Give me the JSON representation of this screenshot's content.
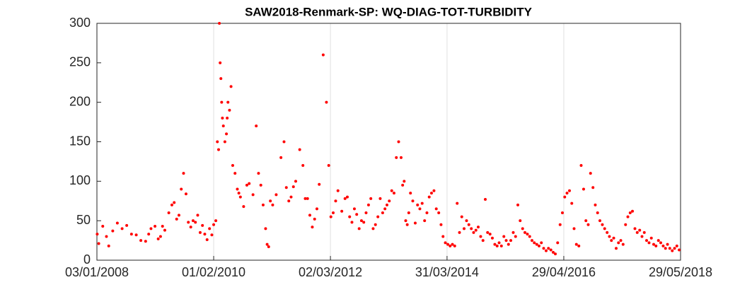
{
  "chart_data": {
    "type": "scatter",
    "title": "SAW2018-Renmark-SP: WQ-DIAG-TOT-TURBIDITY",
    "color": "#ff0000",
    "grid": "x",
    "xlim": [
      "03/01/2008",
      "29/05/2018"
    ],
    "xticks": [
      "03/01/2008",
      "01/02/2010",
      "02/03/2012",
      "31/03/2014",
      "29/04/2016",
      "29/05/2018"
    ],
    "ylim": [
      0,
      300
    ],
    "yticks": [
      0,
      50,
      100,
      150,
      200,
      250,
      300
    ],
    "x": [
      "05/01/2008",
      "15/01/2008",
      "10/02/2008",
      "05/03/2008",
      "20/03/2008",
      "15/04/2008",
      "15/05/2008",
      "15/06/2008",
      "15/07/2008",
      "15/08/2008",
      "15/09/2008",
      "15/10/2008",
      "15/11/2008",
      "05/12/2008",
      "20/12/2008",
      "15/01/2009",
      "05/02/2009",
      "20/02/2009",
      "05/03/2009",
      "20/03/2009",
      "15/04/2009",
      "05/05/2009",
      "20/05/2009",
      "05/06/2009",
      "20/06/2009",
      "05/07/2009",
      "20/07/2009",
      "05/08/2009",
      "20/08/2009",
      "05/09/2009",
      "20/09/2009",
      "05/10/2009",
      "20/10/2009",
      "05/11/2009",
      "20/11/2009",
      "05/12/2009",
      "20/12/2009",
      "05/01/2010",
      "20/01/2010",
      "01/02/2010",
      "15/02/2010",
      "25/02/2010",
      "05/03/2010",
      "10/03/2010",
      "15/03/2010",
      "20/03/2010",
      "25/03/2010",
      "30/03/2010",
      "05/04/2010",
      "15/04/2010",
      "25/04/2010",
      "30/04/2010",
      "05/05/2010",
      "15/05/2010",
      "25/05/2010",
      "05/06/2010",
      "20/06/2010",
      "05/07/2010",
      "15/07/2010",
      "25/07/2010",
      "15/08/2010",
      "05/09/2010",
      "20/09/2010",
      "15/10/2010",
      "05/11/2010",
      "20/11/2010",
      "05/12/2010",
      "20/12/2010",
      "05/01/2011",
      "15/01/2011",
      "25/01/2011",
      "05/02/2011",
      "20/02/2011",
      "15/03/2011",
      "15/04/2011",
      "05/05/2011",
      "20/05/2011",
      "05/06/2011",
      "20/06/2011",
      "05/07/2011",
      "20/07/2011",
      "15/08/2011",
      "05/09/2011",
      "20/09/2011",
      "05/10/2011",
      "20/10/2011",
      "05/11/2011",
      "20/11/2011",
      "05/12/2011",
      "20/12/2011",
      "15/01/2012",
      "05/02/2012",
      "20/02/2012",
      "05/03/2012",
      "20/03/2012",
      "05/04/2012",
      "20/04/2012",
      "15/05/2012",
      "05/06/2012",
      "20/06/2012",
      "05/07/2012",
      "20/07/2012",
      "05/08/2012",
      "20/08/2012",
      "05/09/2012",
      "20/09/2012",
      "05/10/2012",
      "20/10/2012",
      "05/11/2012",
      "20/11/2012",
      "05/12/2012",
      "20/12/2012",
      "05/01/2013",
      "20/01/2013",
      "05/02/2013",
      "20/02/2013",
      "05/03/2013",
      "20/03/2013",
      "05/04/2013",
      "20/04/2013",
      "05/05/2013",
      "20/05/2013",
      "05/06/2013",
      "15/06/2013",
      "25/06/2013",
      "05/07/2013",
      "15/07/2013",
      "25/07/2013",
      "05/08/2013",
      "20/08/2013",
      "05/09/2013",
      "20/09/2013",
      "05/10/2013",
      "20/10/2013",
      "05/11/2013",
      "20/11/2013",
      "05/12/2013",
      "20/12/2013",
      "05/01/2014",
      "20/01/2014",
      "05/02/2014",
      "20/02/2014",
      "05/03/2014",
      "20/03/2014",
      "05/04/2014",
      "20/04/2014",
      "05/05/2014",
      "20/05/2014",
      "05/06/2014",
      "20/06/2014",
      "05/07/2014",
      "20/07/2014",
      "05/08/2014",
      "20/08/2014",
      "05/09/2014",
      "20/09/2014",
      "05/10/2014",
      "20/10/2014",
      "05/11/2014",
      "20/11/2014",
      "05/12/2014",
      "20/12/2014",
      "05/01/2015",
      "20/01/2015",
      "05/02/2015",
      "20/02/2015",
      "05/03/2015",
      "20/03/2015",
      "05/04/2015",
      "20/04/2015",
      "05/05/2015",
      "20/05/2015",
      "05/06/2015",
      "20/06/2015",
      "05/07/2015",
      "20/07/2015",
      "05/08/2015",
      "20/08/2015",
      "05/09/2015",
      "20/09/2015",
      "05/10/2015",
      "20/10/2015",
      "05/11/2015",
      "20/11/2015",
      "05/12/2015",
      "20/12/2015",
      "05/01/2016",
      "20/01/2016",
      "05/02/2016",
      "20/02/2016",
      "05/03/2016",
      "20/03/2016",
      "05/04/2016",
      "20/04/2016",
      "05/05/2016",
      "20/05/2016",
      "05/06/2016",
      "20/06/2016",
      "05/07/2016",
      "20/07/2016",
      "05/08/2016",
      "20/08/2016",
      "05/09/2016",
      "20/09/2016",
      "05/10/2016",
      "20/10/2016",
      "05/11/2016",
      "20/11/2016",
      "05/12/2016",
      "20/12/2016",
      "05/01/2017",
      "20/01/2017",
      "05/02/2017",
      "20/02/2017",
      "05/03/2017",
      "20/03/2017",
      "05/04/2017",
      "20/04/2017",
      "05/05/2017",
      "20/05/2017",
      "05/06/2017",
      "20/06/2017",
      "05/07/2017",
      "20/07/2017",
      "05/08/2017",
      "20/08/2017",
      "05/09/2017",
      "20/09/2017",
      "05/10/2017",
      "20/10/2017",
      "05/11/2017",
      "20/11/2017",
      "05/12/2017",
      "20/12/2017",
      "05/01/2018",
      "20/01/2018",
      "05/02/2018",
      "20/02/2018",
      "05/03/2018",
      "20/03/2018",
      "05/04/2018",
      "20/04/2018",
      "05/05/2018",
      "20/05/2018"
    ],
    "values": [
      33,
      21,
      43,
      30,
      18,
      37,
      47,
      40,
      44,
      33,
      32,
      25,
      24,
      33,
      40,
      43,
      27,
      30,
      43,
      38,
      60,
      70,
      73,
      52,
      57,
      90,
      110,
      84,
      48,
      42,
      50,
      48,
      57,
      35,
      44,
      33,
      26,
      40,
      32,
      45,
      50,
      150,
      140,
      300,
      250,
      230,
      200,
      180,
      170,
      150,
      160,
      180,
      200,
      190,
      220,
      120,
      110,
      90,
      85,
      80,
      68,
      95,
      97,
      83,
      170,
      110,
      95,
      70,
      40,
      20,
      17,
      75,
      70,
      83,
      130,
      150,
      92,
      75,
      80,
      93,
      100,
      140,
      120,
      78,
      78,
      57,
      42,
      52,
      65,
      96,
      260,
      200,
      120,
      55,
      60,
      75,
      88,
      62,
      78,
      80,
      55,
      48,
      65,
      58,
      40,
      50,
      48,
      60,
      70,
      78,
      40,
      45,
      55,
      78,
      60,
      65,
      70,
      75,
      88,
      85,
      130,
      150,
      130,
      95,
      100,
      50,
      45,
      60,
      85,
      75,
      47,
      70,
      65,
      72,
      50,
      60,
      80,
      85,
      88,
      65,
      60,
      45,
      30,
      22,
      20,
      18,
      20,
      18,
      72,
      35,
      55,
      40,
      50,
      45,
      40,
      35,
      38,
      42,
      30,
      25,
      77,
      35,
      33,
      28,
      20,
      18,
      22,
      18,
      30,
      25,
      20,
      25,
      35,
      30,
      70,
      50,
      40,
      35,
      33,
      30,
      25,
      22,
      20,
      18,
      22,
      15,
      12,
      15,
      13,
      10,
      8,
      22,
      45,
      60,
      80,
      85,
      88,
      72,
      40,
      20,
      18,
      120,
      90,
      50,
      45,
      110,
      92,
      70,
      60,
      50,
      45,
      40,
      35,
      30,
      25,
      28,
      15,
      22,
      25,
      20,
      45,
      55,
      60,
      62,
      40,
      35,
      38,
      30,
      35,
      25,
      22,
      28,
      20,
      18,
      25,
      22,
      18,
      15,
      20,
      15,
      12,
      15,
      18,
      13
    ]
  }
}
